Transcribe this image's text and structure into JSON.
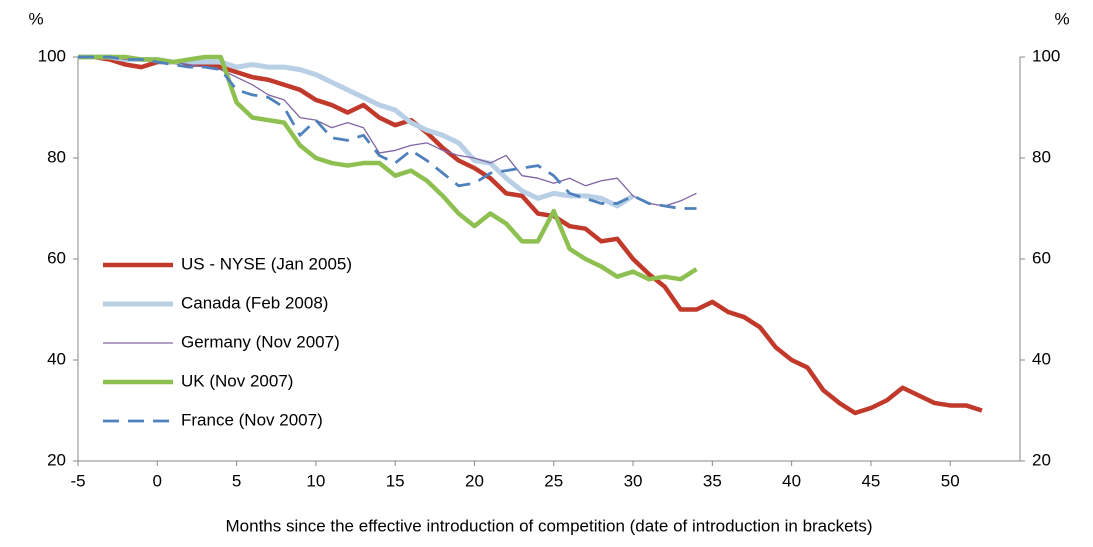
{
  "chart_data": {
    "type": "line",
    "x_label": "Months since the effective introduction of competition (date of introduction in brackets)",
    "y_label": "%",
    "y2_label": "%",
    "xlim": [
      -5,
      54.4
    ],
    "xticks": [
      -5,
      0,
      5,
      10,
      15,
      20,
      25,
      30,
      35,
      40,
      45,
      50
    ],
    "ylim": [
      20,
      100
    ],
    "yticks": [
      20,
      40,
      60,
      80,
      100
    ],
    "y2lim": [
      20,
      100
    ],
    "y2ticks": [
      20,
      40,
      60,
      80,
      100
    ],
    "legend": "left",
    "x": [
      -5,
      -4,
      -3,
      -2,
      -1,
      0,
      1,
      2,
      3,
      4,
      5,
      6,
      7,
      8,
      9,
      10,
      11,
      12,
      13,
      14,
      15,
      16,
      17,
      18,
      19,
      20,
      21,
      22,
      23,
      24,
      25,
      26,
      27,
      28,
      29,
      30,
      31,
      32,
      33,
      34,
      35,
      36,
      37,
      38,
      39,
      40,
      41,
      42,
      43,
      44,
      45,
      46,
      47,
      48,
      49,
      50,
      51,
      52
    ],
    "series": [
      {
        "name": "US - NYSE (Jan 2005)",
        "color": "#c0392b",
        "line_width": 4.5,
        "dashed": false,
        "values": [
          100,
          100,
          99.5,
          98.5,
          98,
          99,
          99,
          98.5,
          98.5,
          98,
          97,
          96,
          95.5,
          94.5,
          93.5,
          91.5,
          90.5,
          89,
          90.5,
          88,
          86.5,
          87.5,
          85,
          82,
          79.5,
          78,
          76,
          73,
          72.5,
          69,
          68.5,
          66.5,
          66,
          63.5,
          64,
          60,
          57,
          54.5,
          50,
          50,
          51.5,
          49.5,
          48.5,
          46.5,
          42.5,
          40,
          38.5,
          34,
          31.5,
          29.5,
          30.5,
          32,
          34.5,
          33,
          31.5,
          31,
          31,
          30
        ]
      },
      {
        "name": "Canada (Feb 2008)",
        "color": "#b8cfe6",
        "line_width": 5,
        "dashed": false,
        "values": [
          100,
          100,
          100,
          99.5,
          99.5,
          99.5,
          99,
          99,
          99,
          99,
          98,
          98.5,
          98,
          98,
          97.5,
          96.5,
          95,
          93.5,
          92,
          90.5,
          89.5,
          87,
          85.5,
          84.5,
          83,
          79.5,
          79,
          76,
          73.5,
          72,
          73,
          72.5,
          72.5,
          72,
          70.5,
          72.5,
          null,
          null,
          null,
          null,
          null,
          null,
          null,
          null,
          null,
          null,
          null,
          null,
          null,
          null,
          null,
          null,
          null,
          null,
          null,
          null,
          null,
          null
        ]
      },
      {
        "name": "Germany (Nov 2007)",
        "color": "#8064a2",
        "line_width": 1.3,
        "dashed": false,
        "values": [
          100,
          100,
          100,
          99.5,
          99.5,
          99,
          99,
          98.5,
          98,
          97.5,
          96,
          94.5,
          92.5,
          91.5,
          88,
          87.5,
          86,
          87,
          86,
          81,
          81.5,
          82.5,
          83,
          81.5,
          80.5,
          80,
          79,
          80.5,
          76.5,
          76,
          75,
          76,
          74.5,
          75.5,
          76,
          72.5,
          71,
          70.5,
          71.5,
          73,
          null,
          null,
          null,
          null,
          null,
          null,
          null,
          null,
          null,
          null,
          null,
          null,
          null,
          null,
          null,
          null,
          null,
          null
        ]
      },
      {
        "name": "UK (Nov 2007)",
        "color": "#8dc050",
        "line_width": 4.5,
        "dashed": false,
        "values": [
          100,
          100,
          100,
          100,
          99.5,
          99.5,
          99,
          99.5,
          100,
          100,
          91,
          88,
          87.5,
          87,
          82.5,
          80,
          79,
          78.5,
          79,
          79,
          76.5,
          77.5,
          75.5,
          72.5,
          69,
          66.5,
          69,
          67,
          63.5,
          63.5,
          69.5,
          62,
          60,
          58.5,
          56.5,
          57.5,
          56,
          56.5,
          56,
          58,
          null,
          null,
          null,
          null,
          null,
          null,
          null,
          null,
          null,
          null,
          null,
          null,
          null,
          null,
          null,
          null,
          null,
          null
        ]
      },
      {
        "name": "France (Nov 2007)",
        "color": "#4f81bd",
        "line_width": 2.8,
        "dashed": true,
        "values": [
          100,
          100,
          100,
          99.5,
          99.5,
          99,
          98.5,
          98,
          98,
          97.5,
          93.5,
          92.5,
          92,
          90,
          84.5,
          87.5,
          84,
          83.5,
          84.5,
          80.5,
          79,
          81.5,
          79.5,
          77,
          74.5,
          75,
          77,
          77.5,
          78,
          78.5,
          76.5,
          73,
          72,
          71,
          71,
          72.5,
          71,
          70.5,
          70,
          70,
          null,
          null,
          null,
          null,
          null,
          null,
          null,
          null,
          null,
          null,
          null,
          null,
          null,
          null,
          null,
          null,
          null,
          null
        ]
      }
    ]
  }
}
